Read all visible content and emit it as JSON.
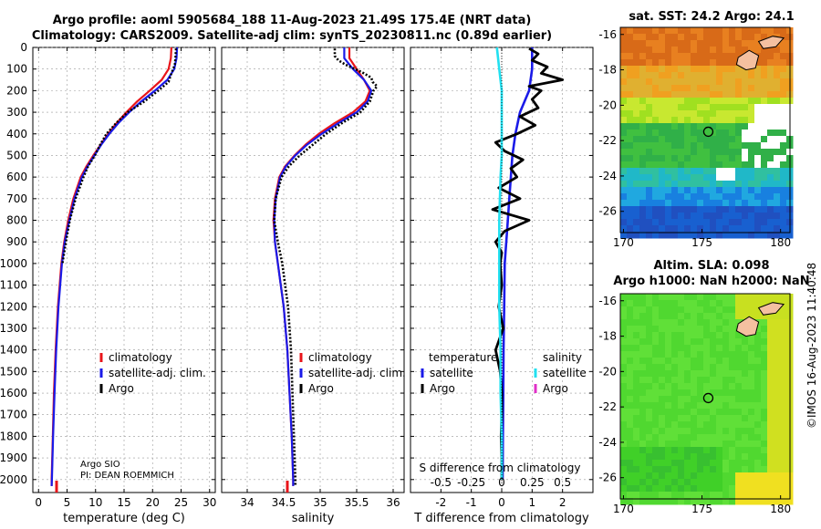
{
  "titles": {
    "line1": "Argo profile: aoml 5905684_188 11-Aug-2023 21.49S 175.4E (NRT data)",
    "line2": "Climatology: CARS2009. Satellite-adj clim: synTS_20230811.nc (0.89d earlier)",
    "sst": "sat. SST: 24.2 Argo: 24.1",
    "sla1": "Altim. SLA: 0.098",
    "sla2": "Argo h1000: NaN h2000: NaN"
  },
  "stamp": "©IMOS 16-Aug-2023 11:40:48",
  "colors": {
    "climatology": "#e8141a",
    "satellite": "#1a1ae8",
    "argo": "#000000",
    "sat_s": "#22e0f0",
    "argo_s": "#e030c8"
  },
  "chart_data": [
    {
      "type": "line",
      "id": "temperature",
      "xlabel": "temperature (deg C)",
      "ylabel": "",
      "xlim": [
        -1,
        31
      ],
      "ylim": [
        2060,
        0
      ],
      "xticks": [
        "0",
        "5",
        "10",
        "15",
        "20",
        "25",
        "30"
      ],
      "yticks": [
        "0",
        "100",
        "200",
        "300",
        "400",
        "500",
        "600",
        "700",
        "800",
        "900",
        "1000",
        "1100",
        "1200",
        "1300",
        "1400",
        "1500",
        "1600",
        "1700",
        "1800",
        "1900",
        "2000"
      ],
      "grid": true,
      "legend_position": "lower-right",
      "legend": [
        "climatology",
        "satellite-adj. clim.",
        "Argo"
      ],
      "annotation": [
        "Argo SIO",
        "PI: DEAN ROEMMICH"
      ],
      "series": [
        {
          "name": "climatology",
          "depth": [
            0,
            50,
            100,
            150,
            200,
            250,
            300,
            350,
            400,
            450,
            500,
            550,
            600,
            700,
            800,
            900,
            1000,
            1200,
            1400,
            1600,
            1800,
            2000,
            2030
          ],
          "values": [
            23.3,
            23.2,
            22.8,
            21.6,
            19.5,
            17.3,
            15.4,
            13.7,
            12.2,
            10.9,
            9.6,
            8.4,
            7.4,
            6.1,
            5.2,
            4.5,
            4.0,
            3.4,
            3.0,
            2.7,
            2.5,
            2.3,
            2.3
          ]
        },
        {
          "name": "satellite-adj. clim.",
          "depth": [
            0,
            50,
            100,
            150,
            200,
            250,
            300,
            350,
            400,
            450,
            500,
            550,
            600,
            700,
            800,
            900,
            1000,
            1200,
            1400,
            1600,
            1800,
            2000,
            2030
          ],
          "values": [
            24.3,
            24.2,
            23.8,
            22.6,
            20.4,
            18.0,
            15.9,
            14.0,
            12.4,
            11.0,
            9.8,
            8.6,
            7.6,
            6.3,
            5.4,
            4.6,
            4.1,
            3.5,
            3.1,
            2.8,
            2.55,
            2.35,
            2.3
          ]
        },
        {
          "name": "Argo",
          "depth": [
            5,
            50,
            80,
            120,
            160,
            200,
            250,
            300,
            350,
            400,
            450,
            500,
            550,
            600,
            700,
            800,
            900,
            1000
          ],
          "values": [
            24.1,
            24.0,
            23.9,
            23.3,
            22.8,
            21.0,
            18.6,
            15.6,
            13.6,
            11.9,
            10.8,
            9.9,
            8.7,
            7.9,
            6.5,
            5.5,
            4.8,
            4.2
          ]
        }
      ]
    },
    {
      "type": "line",
      "id": "salinity",
      "xlabel": "salinity",
      "ylabel": "",
      "xlim": [
        33.65,
        36.15
      ],
      "ylim": [
        2060,
        0
      ],
      "xticks": [
        "34",
        "34.5",
        "35",
        "35.5",
        "36"
      ],
      "grid": true,
      "legend_position": "lower-right",
      "legend": [
        "climatology",
        "satellite-adj. clim.",
        "Argo"
      ],
      "series": [
        {
          "name": "climatology",
          "depth": [
            0,
            50,
            100,
            150,
            200,
            250,
            300,
            350,
            400,
            450,
            500,
            550,
            600,
            700,
            800,
            900,
            1000,
            1200,
            1400,
            1600,
            1800,
            2000,
            2030
          ],
          "values": [
            35.4,
            35.4,
            35.5,
            35.6,
            35.68,
            35.62,
            35.45,
            35.2,
            34.98,
            34.8,
            34.65,
            34.52,
            34.44,
            34.38,
            34.36,
            34.38,
            34.42,
            34.5,
            34.55,
            34.58,
            34.61,
            34.63,
            34.63
          ]
        },
        {
          "name": "satellite-adj. clim.",
          "depth": [
            0,
            50,
            100,
            150,
            200,
            250,
            300,
            350,
            400,
            450,
            500,
            550,
            600,
            700,
            800,
            900,
            1000,
            1200,
            1400,
            1600,
            1800,
            2000,
            2030
          ],
          "values": [
            35.33,
            35.33,
            35.45,
            35.6,
            35.7,
            35.65,
            35.5,
            35.25,
            35.02,
            34.82,
            34.66,
            34.53,
            34.45,
            34.39,
            34.37,
            34.38,
            34.42,
            34.5,
            34.55,
            34.58,
            34.61,
            34.63,
            34.63
          ]
        },
        {
          "name": "Argo",
          "depth": [
            5,
            40,
            60,
            80,
            100,
            120,
            140,
            160,
            180,
            200,
            250,
            300,
            350,
            400,
            450,
            500,
            550,
            600,
            700,
            800,
            900,
            1000,
            1200,
            1400,
            1600,
            1800,
            2000,
            2030
          ],
          "values": [
            35.2,
            35.2,
            35.25,
            35.35,
            35.48,
            35.6,
            35.7,
            35.72,
            35.78,
            35.73,
            35.68,
            35.55,
            35.3,
            35.08,
            34.9,
            34.72,
            34.57,
            34.47,
            34.39,
            34.37,
            34.42,
            34.48,
            34.56,
            34.6,
            34.62,
            34.64,
            34.66,
            34.66
          ]
        }
      ]
    },
    {
      "type": "line",
      "id": "differences",
      "xlabel": "T difference from climatology",
      "xlabel2": "S difference from climatology",
      "xlim": [
        -3,
        3
      ],
      "ylim": [
        2060,
        0
      ],
      "xticks": [
        "-2",
        "-1",
        "0",
        "1",
        "2"
      ],
      "xticks_top": [
        "-0.5",
        "-0.25",
        "0",
        "0.25",
        "0.5"
      ],
      "grid": true,
      "legend_t": {
        "title": "temperature",
        "items": [
          "satellite",
          "Argo"
        ]
      },
      "legend_s": {
        "title": "salinity",
        "items": [
          "satellite",
          "Argo"
        ]
      },
      "series": [
        {
          "name": "T satellite",
          "depth": [
            0,
            50,
            100,
            200,
            300,
            400,
            500,
            600,
            700,
            800,
            1000,
            1200,
            1400,
            1600,
            1800,
            2000
          ],
          "values": [
            1.0,
            1.0,
            1.0,
            0.9,
            0.6,
            0.45,
            0.35,
            0.3,
            0.25,
            0.2,
            0.1,
            0.08,
            0.06,
            0.05,
            0.04,
            0.03
          ]
        },
        {
          "name": "T Argo",
          "depth": [
            5,
            30,
            60,
            90,
            120,
            150,
            180,
            200,
            240,
            280,
            320,
            360,
            400,
            440,
            480,
            520,
            560,
            600,
            650,
            700,
            750,
            800,
            850,
            900,
            950,
            1000,
            1100,
            1200,
            1300,
            1400,
            1500,
            1600,
            1700,
            1800,
            1900,
            2000
          ],
          "values": [
            0.9,
            1.2,
            1.0,
            1.5,
            1.3,
            2.0,
            0.9,
            1.3,
            1.0,
            1.2,
            0.6,
            1.1,
            0.5,
            -0.2,
            0.1,
            0.7,
            0.3,
            0.5,
            -0.1,
            0.6,
            -0.3,
            0.9,
            0.1,
            -0.2,
            0.0,
            -0.05,
            0.0,
            -0.1,
            0.05,
            -0.2,
            -0.05,
            0.0,
            0.0,
            -0.02,
            0.0,
            0.0
          ]
        },
        {
          "name": "S satellite",
          "depth": [
            0,
            50,
            100,
            200,
            300,
            400,
            500,
            600,
            800,
            1000,
            1200,
            1400,
            1600,
            1800,
            2000
          ],
          "values": [
            -0.04,
            -0.03,
            -0.02,
            0.0,
            0.0,
            0.0,
            0.0,
            -0.01,
            -0.02,
            -0.02,
            -0.02,
            -0.01,
            -0.01,
            0.0,
            0.0
          ]
        }
      ]
    },
    {
      "type": "heatmap",
      "id": "sst-map",
      "xlim": [
        169.8,
        180.6
      ],
      "ylim": [
        -27.2,
        -15.6
      ],
      "xticks": [
        "170",
        "175",
        "180"
      ],
      "yticks": [
        "-16",
        "-18",
        "-20",
        "-22",
        "-24",
        "-26"
      ],
      "profile_location": [
        175.4,
        -21.5
      ]
    },
    {
      "type": "heatmap",
      "id": "sla-map",
      "xlim": [
        169.8,
        180.6
      ],
      "ylim": [
        -27.2,
        -15.6
      ],
      "xticks": [
        "170",
        "175",
        "180"
      ],
      "yticks": [
        "-16",
        "-18",
        "-20",
        "-22",
        "-24",
        "-26"
      ],
      "profile_location": [
        175.4,
        -21.5
      ]
    }
  ]
}
